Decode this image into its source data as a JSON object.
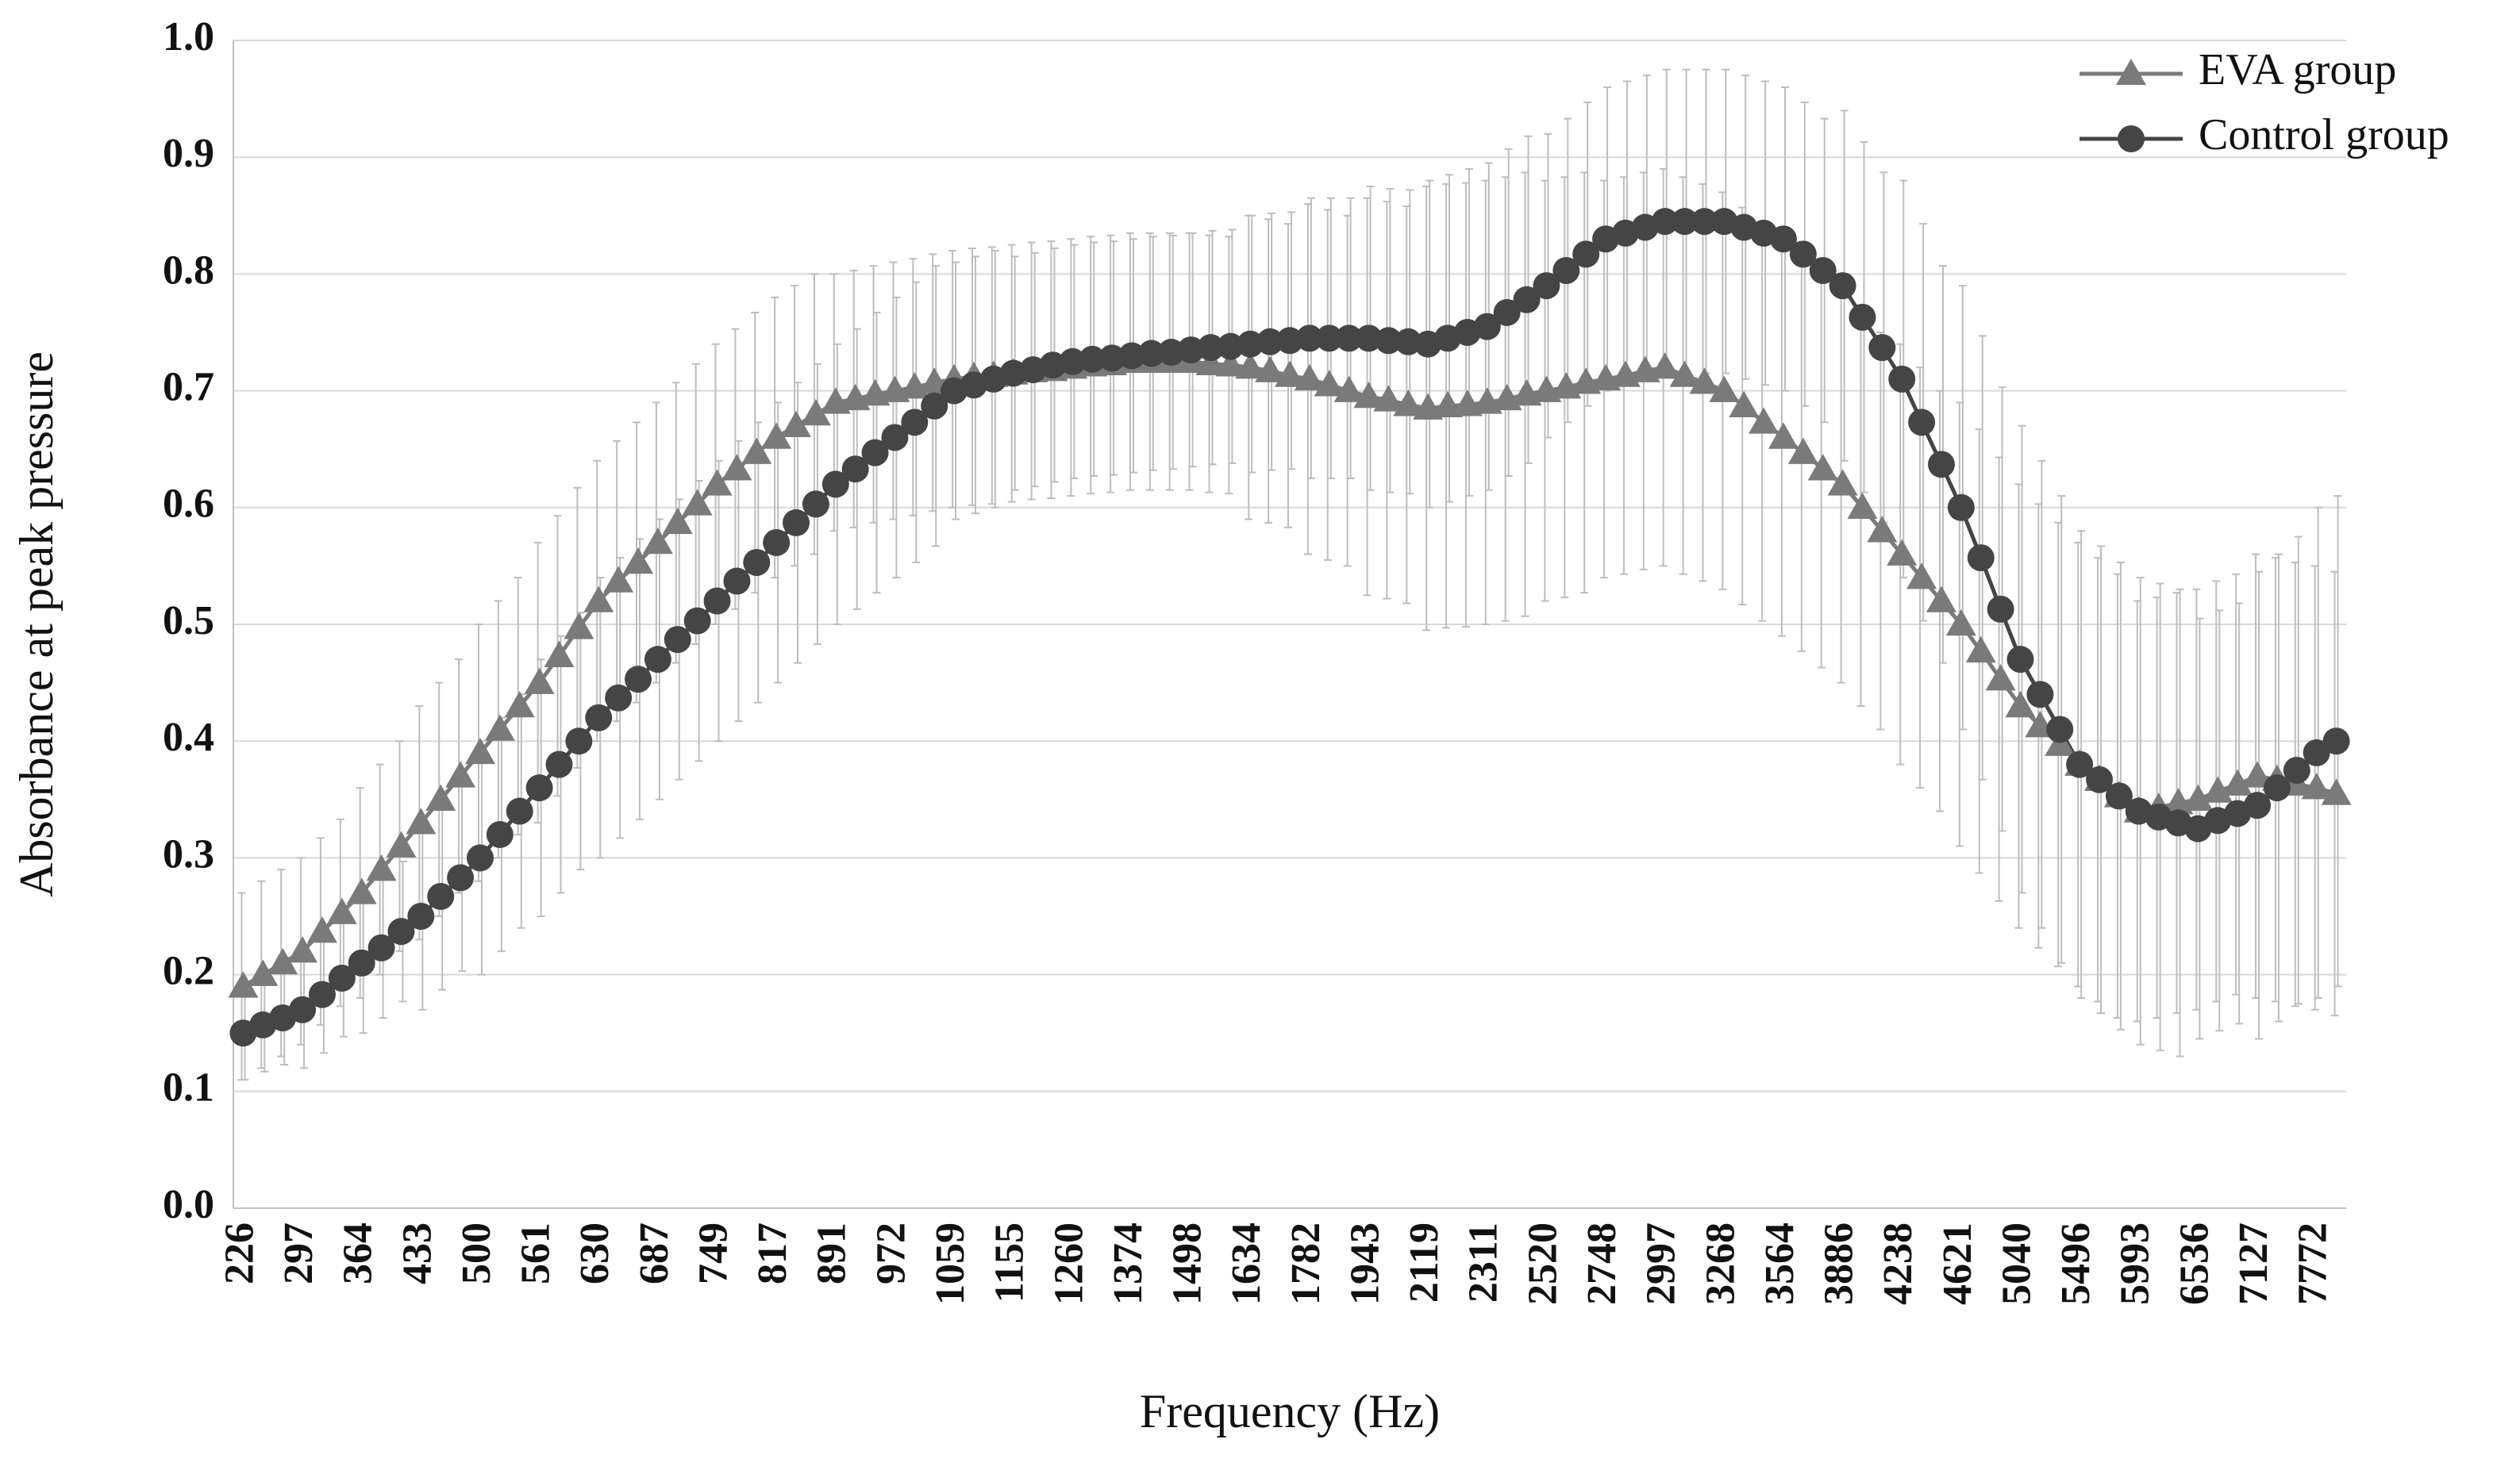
{
  "chart_data": {
    "type": "line",
    "x_label": "Frequency (Hz)",
    "y_label": "Absorbance at peak pressure",
    "categories": [
      "226",
      null,
      null,
      "297",
      null,
      null,
      "364",
      null,
      null,
      "433",
      null,
      null,
      "500",
      null,
      null,
      "561",
      null,
      null,
      "630",
      null,
      null,
      "687",
      null,
      null,
      "749",
      null,
      null,
      "817",
      null,
      null,
      "891",
      null,
      null,
      "972",
      null,
      null,
      "1059",
      null,
      null,
      "1155",
      null,
      null,
      "1260",
      null,
      null,
      "1374",
      null,
      null,
      "1498",
      null,
      null,
      "1634",
      null,
      null,
      "1782",
      null,
      null,
      "1943",
      null,
      null,
      "2119",
      null,
      null,
      "2311",
      null,
      null,
      "2520",
      null,
      null,
      "2748",
      null,
      null,
      "2997",
      null,
      null,
      "3268",
      null,
      null,
      "3564",
      null,
      null,
      "3886",
      null,
      null,
      "4238",
      null,
      null,
      "4621",
      null,
      null,
      "5040",
      null,
      null,
      "5496",
      null,
      null,
      "5993",
      null,
      null,
      "6536",
      null,
      null,
      "7127",
      null,
      null,
      "7772",
      null
    ],
    "series": [
      {
        "name": "EVA group",
        "color": "#7a7a7a",
        "marker": "triangle",
        "values": [
          0.19,
          0.2,
          0.21,
          0.22,
          0.237,
          0.253,
          0.27,
          0.29,
          0.31,
          0.33,
          0.35,
          0.37,
          0.39,
          0.41,
          0.43,
          0.45,
          0.473,
          0.497,
          0.52,
          0.537,
          0.553,
          0.57,
          0.587,
          0.603,
          0.62,
          0.633,
          0.647,
          0.66,
          0.67,
          0.68,
          0.69,
          0.693,
          0.697,
          0.7,
          0.703,
          0.707,
          0.71,
          0.712,
          0.713,
          0.715,
          0.717,
          0.718,
          0.72,
          0.722,
          0.723,
          0.725,
          0.725,
          0.725,
          0.725,
          0.723,
          0.722,
          0.72,
          0.717,
          0.713,
          0.71,
          0.705,
          0.7,
          0.695,
          0.692,
          0.688,
          0.685,
          0.687,
          0.688,
          0.69,
          0.693,
          0.697,
          0.7,
          0.703,
          0.707,
          0.71,
          0.713,
          0.717,
          0.72,
          0.713,
          0.707,
          0.7,
          0.687,
          0.673,
          0.66,
          0.647,
          0.633,
          0.62,
          0.6,
          0.58,
          0.56,
          0.54,
          0.52,
          0.5,
          0.477,
          0.453,
          0.43,
          0.413,
          0.397,
          0.38,
          0.367,
          0.353,
          0.34,
          0.343,
          0.347,
          0.35,
          0.357,
          0.363,
          0.37,
          0.367,
          0.363,
          0.36,
          0.355
        ],
        "errors": [
          0.08,
          0.08,
          0.08,
          0.08,
          0.08,
          0.08,
          0.09,
          0.09,
          0.09,
          0.1,
          0.1,
          0.1,
          0.11,
          0.11,
          0.11,
          0.12,
          0.12,
          0.12,
          0.12,
          0.12,
          0.12,
          0.12,
          0.12,
          0.12,
          0.12,
          0.12,
          0.12,
          0.12,
          0.12,
          0.12,
          0.11,
          0.11,
          0.11,
          0.11,
          0.11,
          0.11,
          0.11,
          0.11,
          0.11,
          0.11,
          0.11,
          0.11,
          0.11,
          0.11,
          0.11,
          0.11,
          0.11,
          0.11,
          0.11,
          0.11,
          0.11,
          0.13,
          0.13,
          0.13,
          0.15,
          0.15,
          0.15,
          0.17,
          0.17,
          0.17,
          0.19,
          0.19,
          0.19,
          0.19,
          0.19,
          0.19,
          0.18,
          0.18,
          0.18,
          0.17,
          0.17,
          0.17,
          0.17,
          0.17,
          0.17,
          0.17,
          0.17,
          0.17,
          0.17,
          0.17,
          0.17,
          0.17,
          0.17,
          0.17,
          0.18,
          0.18,
          0.18,
          0.19,
          0.19,
          0.19,
          0.19,
          0.19,
          0.19,
          0.19,
          0.19,
          0.19,
          0.18,
          0.18,
          0.18,
          0.18,
          0.18,
          0.18,
          0.19,
          0.19,
          0.19,
          0.19,
          0.19
        ]
      },
      {
        "name": "Control group",
        "color": "#454545",
        "marker": "circle",
        "values": [
          0.15,
          0.157,
          0.163,
          0.17,
          0.183,
          0.197,
          0.21,
          0.223,
          0.237,
          0.25,
          0.267,
          0.283,
          0.3,
          0.32,
          0.34,
          0.36,
          0.38,
          0.4,
          0.42,
          0.437,
          0.453,
          0.47,
          0.487,
          0.503,
          0.52,
          0.537,
          0.553,
          0.57,
          0.587,
          0.603,
          0.62,
          0.633,
          0.647,
          0.66,
          0.673,
          0.687,
          0.7,
          0.705,
          0.71,
          0.715,
          0.718,
          0.722,
          0.725,
          0.727,
          0.728,
          0.73,
          0.732,
          0.733,
          0.735,
          0.737,
          0.738,
          0.74,
          0.742,
          0.743,
          0.745,
          0.745,
          0.745,
          0.745,
          0.743,
          0.742,
          0.74,
          0.745,
          0.75,
          0.755,
          0.767,
          0.778,
          0.79,
          0.803,
          0.817,
          0.83,
          0.835,
          0.84,
          0.845,
          0.845,
          0.845,
          0.845,
          0.84,
          0.835,
          0.83,
          0.817,
          0.803,
          0.79,
          0.763,
          0.737,
          0.71,
          0.673,
          0.637,
          0.6,
          0.557,
          0.513,
          0.47,
          0.44,
          0.41,
          0.38,
          0.367,
          0.353,
          0.34,
          0.335,
          0.33,
          0.325,
          0.332,
          0.338,
          0.345,
          0.36,
          0.375,
          0.39,
          0.4
        ],
        "errors": [
          0.04,
          0.04,
          0.04,
          0.05,
          0.05,
          0.05,
          0.06,
          0.06,
          0.06,
          0.08,
          0.08,
          0.08,
          0.1,
          0.1,
          0.1,
          0.11,
          0.11,
          0.11,
          0.12,
          0.12,
          0.12,
          0.12,
          0.12,
          0.12,
          0.12,
          0.12,
          0.12,
          0.12,
          0.12,
          0.12,
          0.12,
          0.12,
          0.12,
          0.12,
          0.12,
          0.12,
          0.11,
          0.11,
          0.11,
          0.1,
          0.1,
          0.1,
          0.1,
          0.1,
          0.1,
          0.1,
          0.1,
          0.1,
          0.1,
          0.1,
          0.1,
          0.11,
          0.11,
          0.11,
          0.12,
          0.12,
          0.12,
          0.13,
          0.13,
          0.13,
          0.14,
          0.14,
          0.14,
          0.14,
          0.14,
          0.14,
          0.13,
          0.13,
          0.13,
          0.13,
          0.13,
          0.13,
          0.13,
          0.13,
          0.13,
          0.13,
          0.13,
          0.13,
          0.13,
          0.13,
          0.13,
          0.15,
          0.15,
          0.15,
          0.17,
          0.17,
          0.17,
          0.19,
          0.19,
          0.19,
          0.2,
          0.2,
          0.2,
          0.2,
          0.2,
          0.2,
          0.2,
          0.2,
          0.2,
          0.18,
          0.18,
          0.18,
          0.2,
          0.2,
          0.2,
          0.21,
          0.21
        ]
      }
    ],
    "ylim": [
      0,
      1
    ],
    "yticks": [
      {
        "value": 0,
        "label": "0.0"
      },
      0.1,
      0.2,
      0.3,
      0.4,
      0.5,
      0.6,
      0.7,
      0.8,
      0.9,
      {
        "value": 1,
        "label": "1.0"
      }
    ],
    "grid": true,
    "legend": "top-right",
    "error_color": "#bdbdbd"
  }
}
